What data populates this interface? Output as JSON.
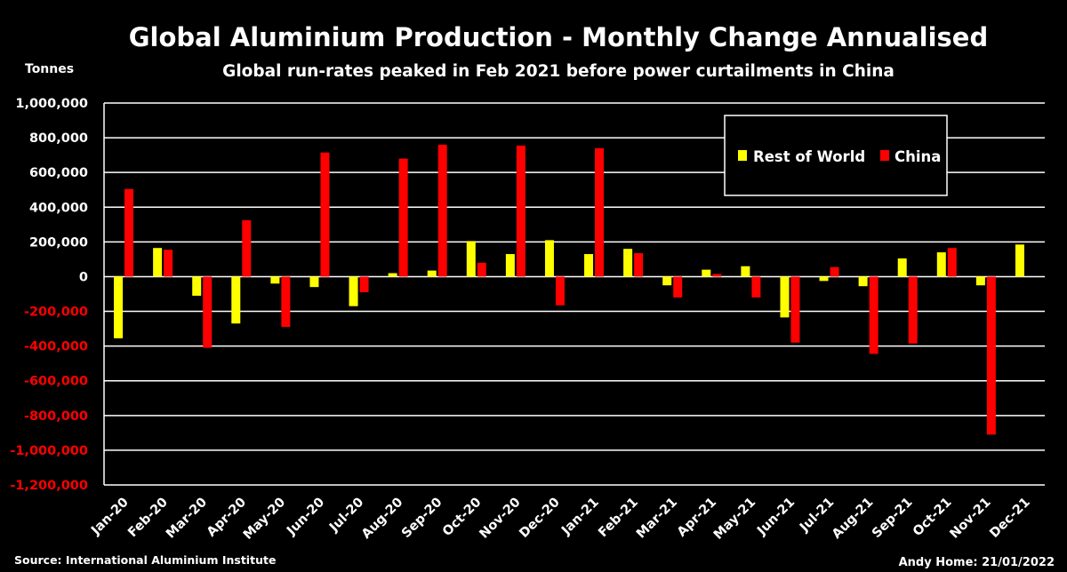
{
  "chart_data": {
    "type": "bar",
    "title": "Global Aluminium Production - Monthly Change Annualised",
    "subtitle": "Global run-rates peaked in Feb 2021 before power curtailments in China",
    "ylabel": "Tonnes",
    "xlabel": "",
    "ylim": [
      -1200000,
      1000000
    ],
    "ytick_step": 200000,
    "yticks": [
      "1,000,000",
      "800,000",
      "600,000",
      "400,000",
      "200,000",
      "0",
      "-200,000",
      "-400,000",
      "-600,000",
      "-800,000",
      "-1,000,000",
      "-1,200,000"
    ],
    "grid": true,
    "legend_position": "top-right",
    "categories": [
      "Jan-20",
      "Feb-20",
      "Mar-20",
      "Apr-20",
      "May-20",
      "Jun-20",
      "Jul-20",
      "Aug-20",
      "Sep-20",
      "Oct-20",
      "Nov-20",
      "Dec-20",
      "Jan-21",
      "Feb-21",
      "Mar-21",
      "Apr-21",
      "May-21",
      "Jun-21",
      "Jul-21",
      "Aug-21",
      "Sep-21",
      "Oct-21",
      "Nov-21",
      "Dec-21"
    ],
    "series": [
      {
        "name": "Rest of World",
        "color": "#ffff00",
        "values": [
          -355000,
          165000,
          -110000,
          -270000,
          -40000,
          -60000,
          -170000,
          20000,
          35000,
          205000,
          130000,
          210000,
          130000,
          160000,
          -50000,
          40000,
          60000,
          -235000,
          -25000,
          -55000,
          105000,
          140000,
          -50000,
          185000
        ]
      },
      {
        "name": "China",
        "color": "#ff0000",
        "values": [
          505000,
          155000,
          -410000,
          325000,
          -290000,
          715000,
          -90000,
          680000,
          760000,
          80000,
          755000,
          -165000,
          740000,
          135000,
          -120000,
          15000,
          -120000,
          -380000,
          55000,
          -445000,
          -385000,
          165000,
          -910000,
          null
        ]
      }
    ],
    "source": "Source: International Aluminium Institute",
    "credit": "Andy Home: 21/01/2022"
  }
}
